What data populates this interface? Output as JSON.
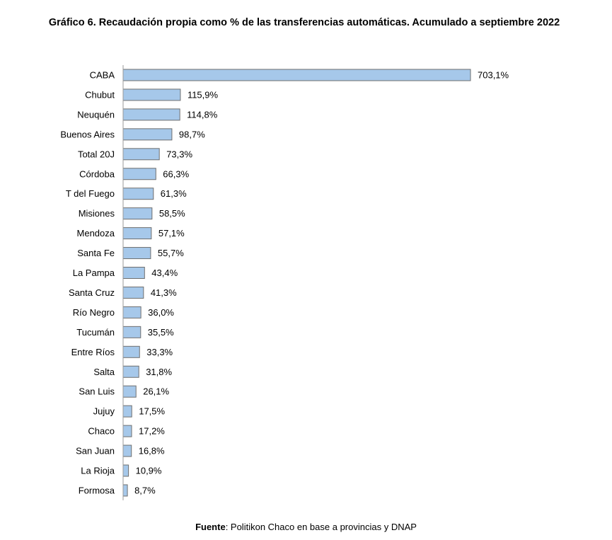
{
  "title": "Gráfico 6. Recaudación propia como % de las transferencias automáticas. Acumulado a septiembre 2022",
  "source": {
    "label": "Fuente",
    "text": ": Politikon Chaco en base a provincias y DNAP"
  },
  "colors": {
    "bar_fill": "#a6c8ea",
    "bar_stroke": "#6f6f6f",
    "axis": "#9a9a9a"
  },
  "chart_data": {
    "type": "bar",
    "orientation": "horizontal",
    "title": "Gráfico 6. Recaudación propia como % de las transferencias automáticas. Acumulado a septiembre 2022",
    "xlabel": "",
    "ylabel": "",
    "grid": false,
    "legend": "none",
    "categories": [
      "CABA",
      "Chubut",
      "Neuquén",
      "Buenos Aires",
      "Total 20J",
      "Córdoba",
      "T del Fuego",
      "Misiones",
      "Mendoza",
      "Santa Fe",
      "La Pampa",
      "Santa Cruz",
      "Río Negro",
      "Tucumán",
      "Entre Ríos",
      "Salta",
      "San Luis",
      "Jujuy",
      "Chaco",
      "San Juan",
      "La Rioja",
      "Formosa"
    ],
    "values": [
      703.1,
      115.9,
      114.8,
      98.7,
      73.3,
      66.3,
      61.3,
      58.5,
      57.1,
      55.7,
      43.4,
      41.3,
      36.0,
      35.5,
      33.3,
      31.8,
      26.1,
      17.5,
      17.2,
      16.8,
      10.9,
      8.7
    ],
    "value_labels": [
      "703,1%",
      "115,9%",
      "114,8%",
      "98,7%",
      "73,3%",
      "66,3%",
      "61,3%",
      "58,5%",
      "57,1%",
      "55,7%",
      "43,4%",
      "41,3%",
      "36,0%",
      "35,5%",
      "33,3%",
      "31,8%",
      "26,1%",
      "17,5%",
      "17,2%",
      "16,8%",
      "10,9%",
      "8,7%"
    ],
    "xlim": [
      0,
      703.1
    ]
  }
}
